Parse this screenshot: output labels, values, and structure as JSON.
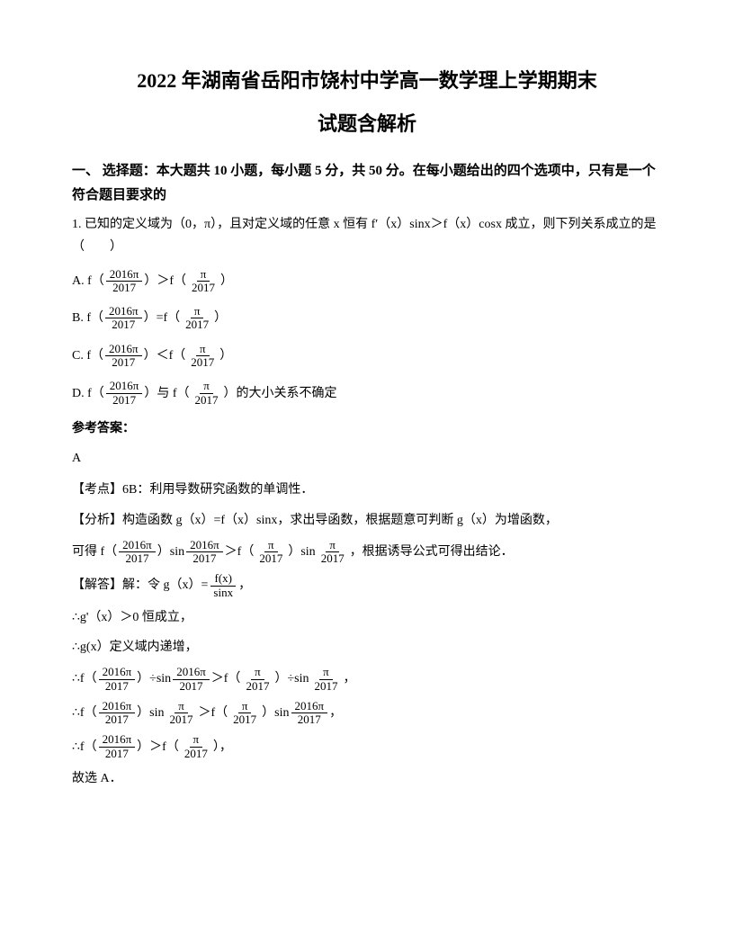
{
  "title_line1": "2022 年湖南省岳阳市饶村中学高一数学理上学期期末",
  "title_line2": "试题含解析",
  "section_header": "一、 选择题：本大题共 10 小题，每小题 5 分，共 50 分。在每小题给出的四个选项中，只有是一个符合题目要求的",
  "problem_intro": "1. 已知的定义域为（0，π），且对定义域的任意 x 恒有 f′（x）sinx＞f（x）cosx 成立，则下列关系成立的是（　　）",
  "option_a_prefix": "A. f（",
  "option_a_mid": "）＞f（",
  "option_a_suffix": "）",
  "option_b_prefix": "B. f（",
  "option_b_mid": "）=f（",
  "option_b_suffix": "）",
  "option_c_prefix": "C. f（",
  "option_c_mid": "）＜f（",
  "option_c_suffix": "）",
  "option_d_prefix": "D. f（",
  "option_d_mid": "）与 f（",
  "option_d_suffix": "）的大小关系不确定",
  "frac_2016pi_num": "2016π",
  "frac_2016pi_den": "2017",
  "frac_pi_num": "π",
  "frac_pi_den": "2017",
  "answer_label": "参考答案：",
  "answer": "A",
  "kaodian": "【考点】6B：利用导数研究函数的单调性．",
  "fenxi_prefix": "【分析】构造函数 g（x）=f（x）sinx，求出导函数，根据题意可判断 g（x）为增函数，",
  "fenxi_line2_p1": "可得 f（",
  "fenxi_line2_p2": "）sin",
  "fenxi_line2_p3": "＞f（",
  "fenxi_line2_p4": "）sin",
  "fenxi_line2_p5": "，根据诱导公式可得出结论．",
  "jieda_prefix": "【解答】解：令 g（x）=",
  "jieda_suffix": "，",
  "frac_fx_num": "f(x)",
  "frac_fx_den": "sinx",
  "step1": "∴g'（x）＞0 恒成立，",
  "step2": "∴g(x）定义域内递增，",
  "step3_p1": "∴f（",
  "step3_p2": "）÷sin",
  "step3_p3": "＞f（",
  "step3_p4": "）÷sin",
  "step3_p5": "，",
  "step4_p1": "∴f（",
  "step4_p2": "）sin",
  "step4_p3": "＞f（",
  "step4_p4": "）sin",
  "step4_p5": "，",
  "step5_p1": "∴f（",
  "step5_p2": "）＞f（",
  "step5_p3": "），",
  "conclusion": "故选 A．"
}
